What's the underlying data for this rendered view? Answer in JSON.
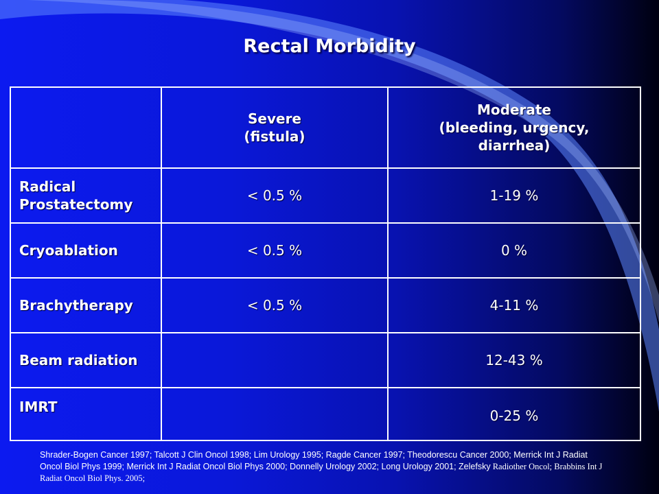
{
  "title": "Rectal Morbidity",
  "table": {
    "headers": {
      "blank": "",
      "severe": [
        "Severe",
        "(fistula)"
      ],
      "moderate": [
        "Moderate",
        "(bleeding, urgency,",
        "diarrhea)"
      ]
    },
    "rows": [
      {
        "label": "Radical Prostatectomy",
        "severe": "< 0.5  %",
        "moderate": "1-19 %"
      },
      {
        "label": "Cryoablation",
        "severe": "< 0.5 %",
        "moderate": "0 %"
      },
      {
        "label": "Brachytherapy",
        "severe": "< 0.5 %",
        "moderate": "4-11 %"
      },
      {
        "label": "Beam radiation",
        "severe": "",
        "moderate": "12-43 %"
      },
      {
        "label": "IMRT",
        "severe": "",
        "moderate": "0-25 %"
      }
    ]
  },
  "citations": {
    "sans": "Shrader-Bogen Cancer 1997; Talcott J Clin Oncol 1998; Lim Urology 1995; Ragde Cancer 1997; Theodorescu Cancer 2000;  Merrick Int J Radiat Oncol Biol Phys 1999;  Merrick Int J Radiat Oncol Biol Phys 2000; Donnelly Urology 2002; Long Urology 2001; Zelefsky",
    "serif": " Radiother Oncol; Brabbins Int J Radiat Oncol Biol Phys. 2005;"
  }
}
